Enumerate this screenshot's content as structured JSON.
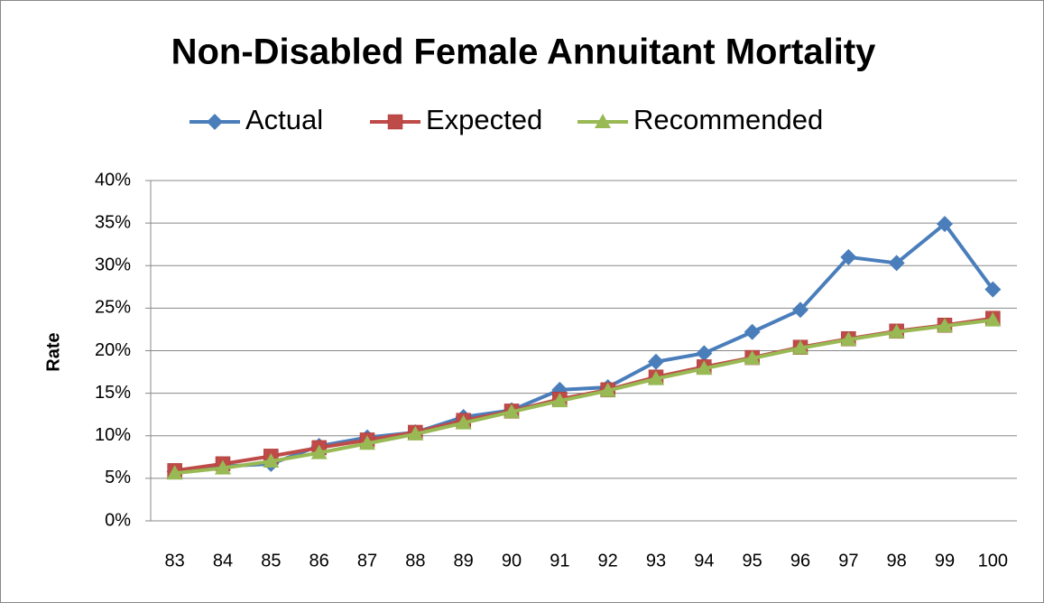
{
  "chart_data": {
    "type": "line",
    "title": "Non-Disabled Female Annuitant Mortality",
    "y_label": "Rate",
    "categories": [
      "83",
      "84",
      "85",
      "86",
      "87",
      "88",
      "89",
      "90",
      "91",
      "92",
      "93",
      "94",
      "95",
      "96",
      "97",
      "98",
      "99",
      "100"
    ],
    "series": [
      {
        "name": "Actual",
        "color": "#4a7ebb",
        "marker": "diamond",
        "values": [
          5.8,
          6.4,
          6.7,
          8.8,
          9.8,
          10.4,
          12.2,
          13.0,
          15.4,
          15.7,
          18.7,
          19.7,
          22.2,
          24.8,
          31.0,
          30.3,
          34.9,
          27.2
        ]
      },
      {
        "name": "Expected",
        "color": "#be4b48",
        "marker": "square",
        "values": [
          5.9,
          6.7,
          7.6,
          8.6,
          9.5,
          10.4,
          11.8,
          12.9,
          14.3,
          15.4,
          16.9,
          18.1,
          19.2,
          20.4,
          21.4,
          22.3,
          23.0,
          23.8
        ]
      },
      {
        "name": "Recommended",
        "color": "#98b954",
        "marker": "triangle",
        "values": [
          5.6,
          6.2,
          7.0,
          8.0,
          9.1,
          10.2,
          11.5,
          12.8,
          14.1,
          15.3,
          16.7,
          17.9,
          19.1,
          20.3,
          21.3,
          22.2,
          22.9,
          23.6
        ]
      }
    ],
    "ylim": [
      0,
      40
    ],
    "yticks": [
      {
        "value": 0,
        "label": "0%"
      },
      {
        "value": 5,
        "label": "5%"
      },
      {
        "value": 10,
        "label": "10%"
      },
      {
        "value": 15,
        "label": "15%"
      },
      {
        "value": 20,
        "label": "20%"
      },
      {
        "value": 25,
        "label": "25%"
      },
      {
        "value": 30,
        "label": "30%"
      },
      {
        "value": 35,
        "label": "35%"
      },
      {
        "value": 40,
        "label": "40%"
      }
    ],
    "grid": true,
    "legend": "top"
  }
}
